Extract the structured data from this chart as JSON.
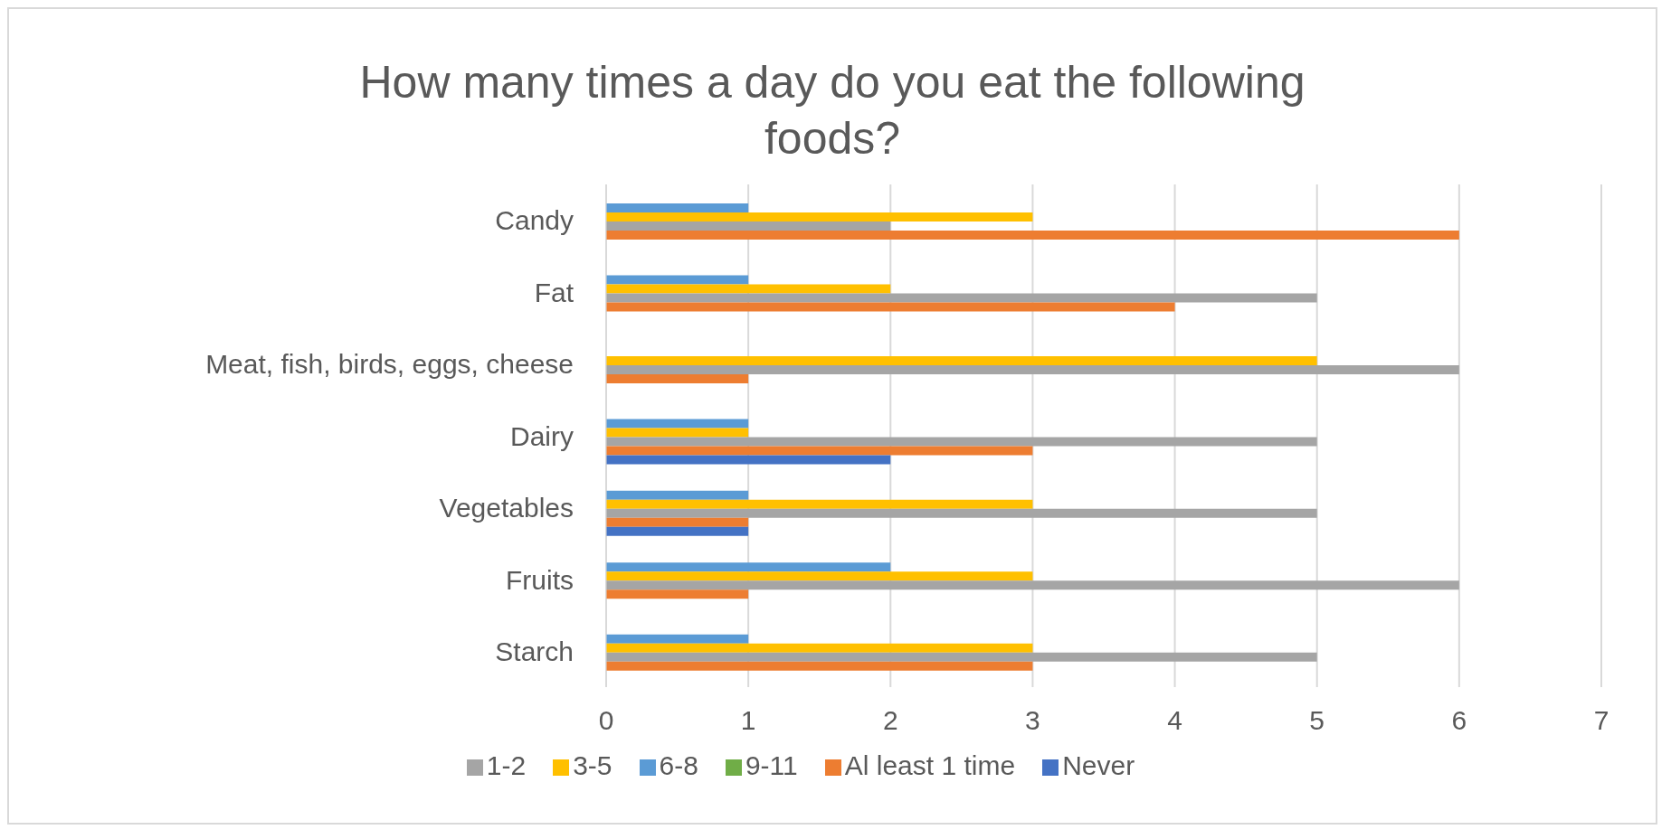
{
  "chart_data": {
    "type": "bar",
    "orientation": "horizontal",
    "title": "How many times a day do you eat the following foods?",
    "categories": [
      "Candy",
      "Fat",
      "Meat, fish, birds, eggs, cheese",
      "Dairy",
      "Vegetables",
      "Fruits",
      "Starch"
    ],
    "series": [
      {
        "name": "9-11",
        "color": "#70ad47",
        "values": [
          0,
          0,
          0,
          0,
          0,
          0,
          0
        ]
      },
      {
        "name": "6-8",
        "color": "#5b9bd5",
        "values": [
          1,
          1,
          0,
          1,
          1,
          2,
          1
        ]
      },
      {
        "name": "3-5",
        "color": "#ffc000",
        "values": [
          3,
          2,
          5,
          1,
          3,
          3,
          3
        ]
      },
      {
        "name": "1-2",
        "color": "#a5a5a5",
        "values": [
          2,
          5,
          6,
          5,
          5,
          6,
          5
        ]
      },
      {
        "name": "Al least 1 time",
        "color": "#ed7d31",
        "values": [
          6,
          4,
          1,
          3,
          1,
          1,
          3
        ]
      },
      {
        "name": "Never",
        "color": "#4472c4",
        "values": [
          0,
          0,
          0,
          2,
          1,
          0,
          0
        ]
      }
    ],
    "xlim": [
      0,
      7
    ],
    "xticks": [
      0,
      1,
      2,
      3,
      4,
      5,
      6,
      7
    ],
    "grid": "x",
    "legend": "bottom"
  }
}
